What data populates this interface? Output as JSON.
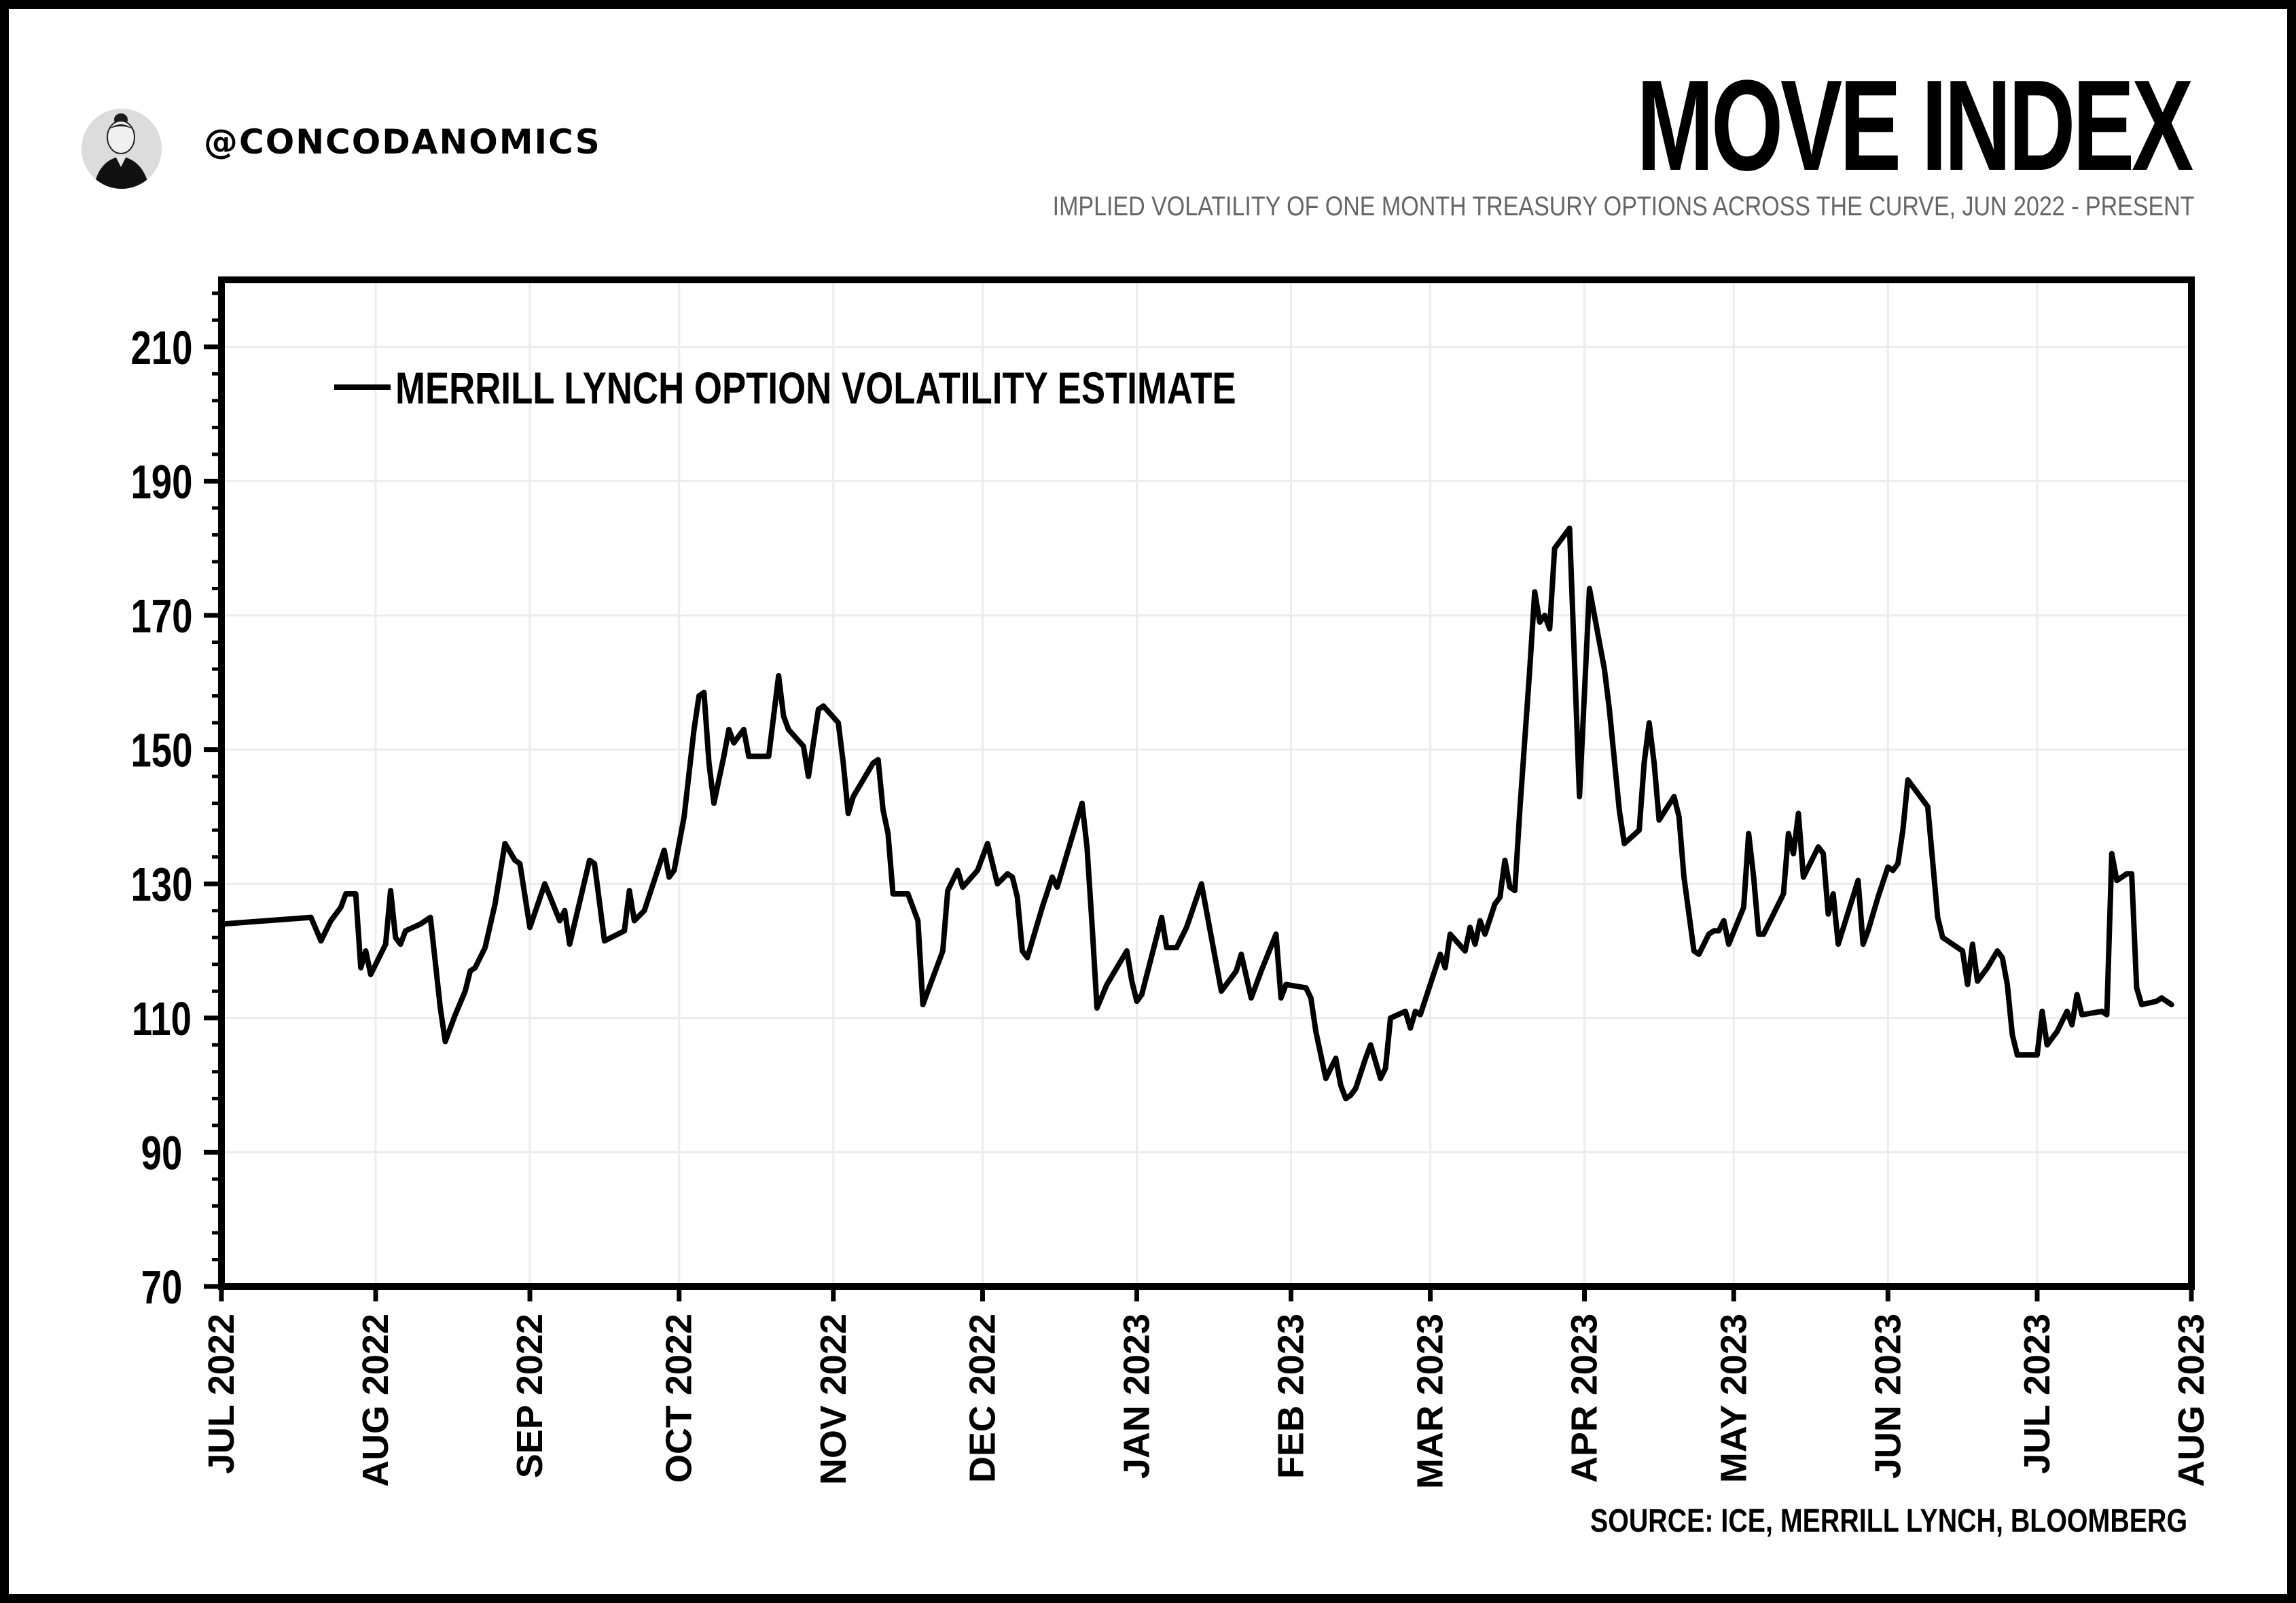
{
  "header": {
    "handle": "@CONCODANOMICS",
    "avatar_icon": "profile-photo-icon"
  },
  "title": "MOVE INDEX",
  "subtitle": "IMPLIED VOLATILITY OF ONE MONTH TREASURY OPTIONS ACROSS THE CURVE, JUN 2022 - PRESENT",
  "source": "SOURCE: ICE, MERRILL LYNCH, BLOOMBERG",
  "chart_data": {
    "type": "line",
    "title": "MOVE INDEX",
    "grid": true,
    "legend_position": "top-left",
    "ylim": [
      70,
      220
    ],
    "yticks": [
      70,
      90,
      110,
      130,
      150,
      170,
      190,
      210
    ],
    "ytick_labels": [
      "70",
      "90",
      "110",
      "130",
      "150",
      "170",
      "190",
      "210"
    ],
    "xlim": [
      "2022-07-01",
      "2023-08-01"
    ],
    "xticks": [
      "2022-07-01",
      "2022-08-01",
      "2022-09-01",
      "2022-10-01",
      "2022-11-01",
      "2022-12-01",
      "2023-01-01",
      "2023-02-01",
      "2023-03-01",
      "2023-04-01",
      "2023-05-01",
      "2023-06-01",
      "2023-07-01",
      "2023-08-01"
    ],
    "xtick_labels": [
      "JUL 2022",
      "AUG 2022",
      "SEP 2022",
      "OCT 2022",
      "NOV 2022",
      "DEC 2022",
      "JAN 2023",
      "FEB 2023",
      "MAR 2023",
      "APR 2023",
      "MAY 2023",
      "JUN 2023",
      "JUL 2023",
      "AUG 2023"
    ],
    "series": [
      {
        "name": "MERRILL LYNCH OPTION VOLATILITY ESTIMATE",
        "color": "#000000",
        "points": [
          [
            "2022-07-01",
            124
          ],
          [
            "2022-07-19",
            125
          ],
          [
            "2022-07-21",
            121.5
          ],
          [
            "2022-07-23",
            124.5
          ],
          [
            "2022-07-25",
            126.5
          ],
          [
            "2022-07-26",
            128.5
          ],
          [
            "2022-07-28",
            128.5
          ],
          [
            "2022-07-29",
            117.5
          ],
          [
            "2022-07-30",
            120
          ],
          [
            "2022-07-31",
            116.5
          ],
          [
            "2022-08-03",
            121
          ],
          [
            "2022-08-04",
            129
          ],
          [
            "2022-08-05",
            122
          ],
          [
            "2022-08-06",
            121
          ],
          [
            "2022-08-07",
            123
          ],
          [
            "2022-08-10",
            124
          ],
          [
            "2022-08-12",
            125
          ],
          [
            "2022-08-14",
            111.5
          ],
          [
            "2022-08-15",
            106.5
          ],
          [
            "2022-08-17",
            110.5
          ],
          [
            "2022-08-19",
            114
          ],
          [
            "2022-08-20",
            117
          ],
          [
            "2022-08-21",
            117.5
          ],
          [
            "2022-08-23",
            120.5
          ],
          [
            "2022-08-25",
            127
          ],
          [
            "2022-08-27",
            136
          ],
          [
            "2022-08-29",
            133.5
          ],
          [
            "2022-08-30",
            133
          ],
          [
            "2022-09-01",
            123.5
          ],
          [
            "2022-09-04",
            130
          ],
          [
            "2022-09-07",
            124.5
          ],
          [
            "2022-09-08",
            126
          ],
          [
            "2022-09-09",
            121
          ],
          [
            "2022-09-13",
            133.5
          ],
          [
            "2022-09-14",
            133
          ],
          [
            "2022-09-16",
            121.5
          ],
          [
            "2022-09-20",
            123
          ],
          [
            "2022-09-21",
            129
          ],
          [
            "2022-09-22",
            124.5
          ],
          [
            "2022-09-24",
            126
          ],
          [
            "2022-09-28",
            135
          ],
          [
            "2022-09-29",
            131
          ],
          [
            "2022-09-30",
            132
          ],
          [
            "2022-10-02",
            140
          ],
          [
            "2022-10-04",
            153
          ],
          [
            "2022-10-05",
            158
          ],
          [
            "2022-10-06",
            158.5
          ],
          [
            "2022-10-07",
            148
          ],
          [
            "2022-10-08",
            142
          ],
          [
            "2022-10-10",
            149
          ],
          [
            "2022-10-11",
            153
          ],
          [
            "2022-10-12",
            151
          ],
          [
            "2022-10-13",
            152
          ],
          [
            "2022-10-14",
            153
          ],
          [
            "2022-10-15",
            149
          ],
          [
            "2022-10-19",
            149
          ],
          [
            "2022-10-20",
            155
          ],
          [
            "2022-10-21",
            161
          ],
          [
            "2022-10-22",
            155
          ],
          [
            "2022-10-23",
            153
          ],
          [
            "2022-10-26",
            150.5
          ],
          [
            "2022-10-27",
            146
          ],
          [
            "2022-10-29",
            156
          ],
          [
            "2022-10-30",
            156.5
          ],
          [
            "2022-11-02",
            154
          ],
          [
            "2022-11-03",
            148
          ],
          [
            "2022-11-04",
            140.5
          ],
          [
            "2022-11-05",
            143
          ],
          [
            "2022-11-09",
            148
          ],
          [
            "2022-11-10",
            148.5
          ],
          [
            "2022-11-11",
            141
          ],
          [
            "2022-11-12",
            137.5
          ],
          [
            "2022-11-13",
            128.5
          ],
          [
            "2022-11-16",
            128.5
          ],
          [
            "2022-11-18",
            124.5
          ],
          [
            "2022-11-19",
            112
          ],
          [
            "2022-11-23",
            120
          ],
          [
            "2022-11-24",
            129
          ],
          [
            "2022-11-26",
            132
          ],
          [
            "2022-11-27",
            129.5
          ],
          [
            "2022-11-30",
            132
          ],
          [
            "2022-12-02",
            136
          ],
          [
            "2022-12-04",
            130
          ],
          [
            "2022-12-06",
            131.5
          ],
          [
            "2022-12-07",
            131
          ],
          [
            "2022-12-08",
            128
          ],
          [
            "2022-12-09",
            120
          ],
          [
            "2022-12-10",
            119
          ],
          [
            "2022-12-13",
            126.5
          ],
          [
            "2022-12-15",
            131
          ],
          [
            "2022-12-16",
            129.5
          ],
          [
            "2022-12-19",
            137
          ],
          [
            "2022-12-21",
            142
          ],
          [
            "2022-12-22",
            135.5
          ],
          [
            "2022-12-23",
            124
          ],
          [
            "2022-12-24",
            111.5
          ],
          [
            "2022-12-26",
            115
          ],
          [
            "2022-12-30",
            120
          ],
          [
            "2022-12-31",
            115.5
          ],
          [
            "2023-01-01",
            112.5
          ],
          [
            "2023-01-02",
            113.5
          ],
          [
            "2023-01-06",
            125
          ],
          [
            "2023-01-07",
            120.5
          ],
          [
            "2023-01-09",
            120.5
          ],
          [
            "2023-01-11",
            123.5
          ],
          [
            "2023-01-14",
            130
          ],
          [
            "2023-01-15",
            126
          ],
          [
            "2023-01-18",
            114
          ],
          [
            "2023-01-21",
            117
          ],
          [
            "2023-01-22",
            119.5
          ],
          [
            "2023-01-24",
            113
          ],
          [
            "2023-01-26",
            117
          ],
          [
            "2023-01-29",
            122.5
          ],
          [
            "2023-01-30",
            113
          ],
          [
            "2023-01-31",
            115
          ],
          [
            "2023-02-04",
            114.5
          ],
          [
            "2023-02-05",
            113
          ],
          [
            "2023-02-06",
            108
          ],
          [
            "2023-02-08",
            101
          ],
          [
            "2023-02-10",
            104
          ],
          [
            "2023-02-11",
            100
          ],
          [
            "2023-02-12",
            98
          ],
          [
            "2023-02-13",
            98.5
          ],
          [
            "2023-02-14",
            99.5
          ],
          [
            "2023-02-16",
            104
          ],
          [
            "2023-02-17",
            106
          ],
          [
            "2023-02-19",
            101
          ],
          [
            "2023-02-20",
            102.5
          ],
          [
            "2023-02-21",
            110
          ],
          [
            "2023-02-24",
            111
          ],
          [
            "2023-02-25",
            108.5
          ],
          [
            "2023-02-26",
            111
          ],
          [
            "2023-02-27",
            110.5
          ],
          [
            "2023-03-01",
            115
          ],
          [
            "2023-03-03",
            119.5
          ],
          [
            "2023-03-04",
            117.5
          ],
          [
            "2023-03-05",
            122.5
          ],
          [
            "2023-03-08",
            120
          ],
          [
            "2023-03-09",
            123.5
          ],
          [
            "2023-03-10",
            121
          ],
          [
            "2023-03-11",
            124.5
          ],
          [
            "2023-03-12",
            122.5
          ],
          [
            "2023-03-14",
            127
          ],
          [
            "2023-03-15",
            128
          ],
          [
            "2023-03-16",
            133.5
          ],
          [
            "2023-03-17",
            129.5
          ],
          [
            "2023-03-18",
            129
          ],
          [
            "2023-03-19",
            141
          ],
          [
            "2023-03-21",
            162
          ],
          [
            "2023-03-22",
            173.5
          ],
          [
            "2023-03-23",
            169
          ],
          [
            "2023-03-24",
            170
          ],
          [
            "2023-03-25",
            168
          ],
          [
            "2023-03-26",
            180
          ],
          [
            "2023-03-29",
            183
          ],
          [
            "2023-03-31",
            143
          ],
          [
            "2023-04-02",
            174
          ],
          [
            "2023-04-04",
            166
          ],
          [
            "2023-04-05",
            162
          ],
          [
            "2023-04-06",
            156
          ],
          [
            "2023-04-08",
            141
          ],
          [
            "2023-04-09",
            136
          ],
          [
            "2023-04-12",
            138
          ],
          [
            "2023-04-13",
            148
          ],
          [
            "2023-04-14",
            154
          ],
          [
            "2023-04-15",
            148
          ],
          [
            "2023-04-16",
            139.5
          ],
          [
            "2023-04-19",
            143
          ],
          [
            "2023-04-20",
            140
          ],
          [
            "2023-04-21",
            131
          ],
          [
            "2023-04-23",
            120
          ],
          [
            "2023-04-24",
            119.5
          ],
          [
            "2023-04-26",
            122.5
          ],
          [
            "2023-04-27",
            123
          ],
          [
            "2023-04-28",
            123
          ],
          [
            "2023-04-29",
            124.5
          ],
          [
            "2023-04-30",
            121
          ],
          [
            "2023-05-03",
            126.5
          ],
          [
            "2023-05-04",
            137.5
          ],
          [
            "2023-05-05",
            131
          ],
          [
            "2023-05-06",
            122.5
          ],
          [
            "2023-05-07",
            122.5
          ],
          [
            "2023-05-11",
            128.5
          ],
          [
            "2023-05-12",
            137.5
          ],
          [
            "2023-05-13",
            134.5
          ],
          [
            "2023-05-14",
            140.5
          ],
          [
            "2023-05-15",
            131
          ],
          [
            "2023-05-18",
            135.5
          ],
          [
            "2023-05-19",
            134.5
          ],
          [
            "2023-05-20",
            125.5
          ],
          [
            "2023-05-21",
            128.5
          ],
          [
            "2023-05-22",
            121
          ],
          [
            "2023-05-26",
            130.5
          ],
          [
            "2023-05-27",
            121
          ],
          [
            "2023-05-28",
            123
          ],
          [
            "2023-05-30",
            128
          ],
          [
            "2023-06-01",
            132.5
          ],
          [
            "2023-06-02",
            132
          ],
          [
            "2023-06-03",
            133
          ],
          [
            "2023-06-04",
            138
          ],
          [
            "2023-06-05",
            145.5
          ],
          [
            "2023-06-09",
            141.5
          ],
          [
            "2023-06-11",
            125
          ],
          [
            "2023-06-12",
            122
          ],
          [
            "2023-06-16",
            120
          ],
          [
            "2023-06-17",
            115
          ],
          [
            "2023-06-18",
            121
          ],
          [
            "2023-06-19",
            115.5
          ],
          [
            "2023-06-21",
            117.5
          ],
          [
            "2023-06-23",
            120
          ],
          [
            "2023-06-24",
            119
          ],
          [
            "2023-06-25",
            115
          ],
          [
            "2023-06-26",
            107.5
          ],
          [
            "2023-06-27",
            104.5
          ],
          [
            "2023-06-29",
            104.5
          ],
          [
            "2023-07-01",
            104.5
          ],
          [
            "2023-07-02",
            111
          ],
          [
            "2023-07-03",
            106
          ],
          [
            "2023-07-05",
            108
          ],
          [
            "2023-07-06",
            109.5
          ],
          [
            "2023-07-07",
            111
          ],
          [
            "2023-07-08",
            109
          ],
          [
            "2023-07-09",
            113.5
          ],
          [
            "2023-07-10",
            110.5
          ],
          [
            "2023-07-14",
            111
          ],
          [
            "2023-07-15",
            110.5
          ],
          [
            "2023-07-16",
            134.5
          ],
          [
            "2023-07-17",
            130.5
          ],
          [
            "2023-07-19",
            131.5
          ],
          [
            "2023-07-20",
            131.5
          ],
          [
            "2023-07-21",
            114.5
          ],
          [
            "2023-07-22",
            112
          ],
          [
            "2023-07-25",
            112.5
          ],
          [
            "2023-07-26",
            113
          ],
          [
            "2023-07-28",
            112
          ]
        ]
      }
    ]
  }
}
